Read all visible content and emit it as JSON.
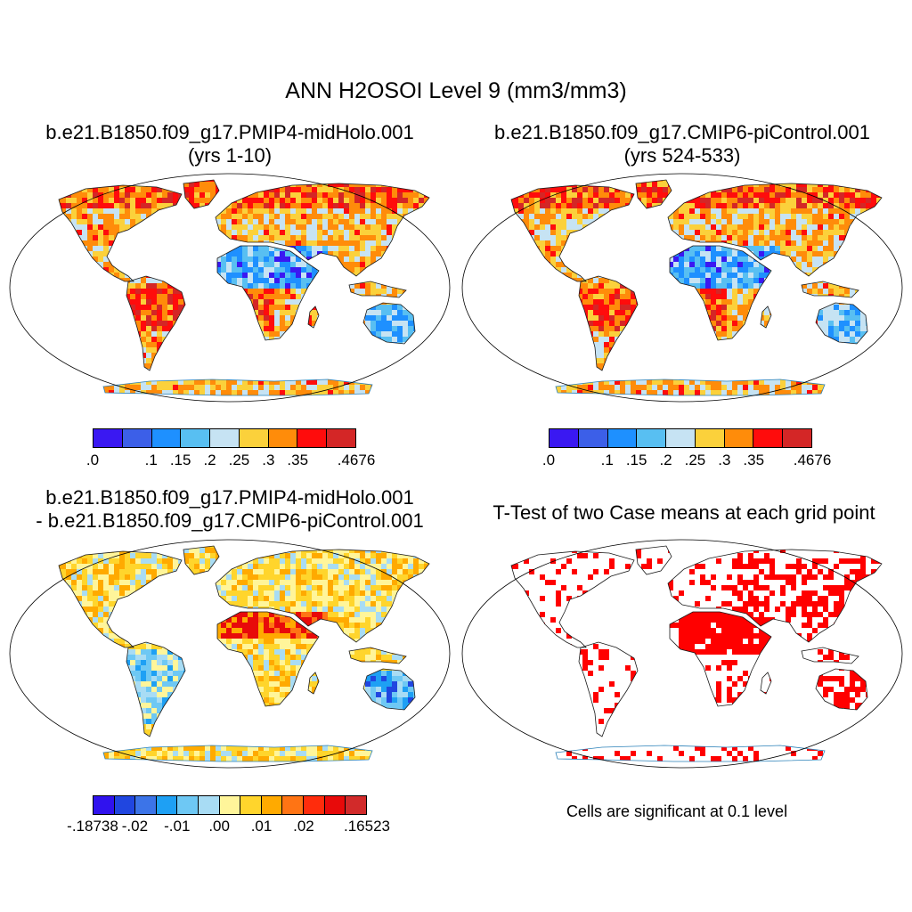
{
  "title": "ANN H2OSOI Level 9 (mm3/mm3)",
  "panels": [
    {
      "line1": "b.e21.B1850.f09_g17.PMIP4-midHolo.001",
      "line2": "(yrs 1-10)"
    },
    {
      "line1": "b.e21.B1850.f09_g17.CMIP6-piControl.001",
      "line2": "(yrs 524-533)"
    },
    {
      "line1": "b.e21.B1850.f09_g17.PMIP4-midHolo.001",
      "line2": "- b.e21.B1850.f09_g17.CMIP6-piControl.001"
    },
    {
      "line1": "T-Test of two Case means at each grid point"
    }
  ],
  "significance_note": "Cells are significant at 0.1 level",
  "colorbars": {
    "absolute": {
      "colors": [
        "#3a18f2",
        "#3c5fe8",
        "#1e90ff",
        "#58bff2",
        "#c6e3f3",
        "#fbd13b",
        "#ff8c0a",
        "#ff0c0c",
        "#d42626"
      ],
      "labels": [
        ".0",
        ".1",
        ".15",
        ".2",
        ".25",
        ".3",
        ".35",
        ".4676"
      ],
      "label_index": [
        0,
        2,
        3,
        4,
        5,
        6,
        7,
        9
      ]
    },
    "difference": {
      "colors": [
        "#3012ee",
        "#2046e0",
        "#3c74e8",
        "#1ea0f4",
        "#6ec8f4",
        "#a8dcf4",
        "#fff59a",
        "#ffd52c",
        "#ffaa00",
        "#ff7414",
        "#ff2c0c",
        "#e80a0a",
        "#d22a2a"
      ],
      "labels": [
        "-.18738",
        "-.02",
        "-.01",
        ".00",
        ".01",
        ".02",
        ".16523"
      ],
      "label_index": [
        0,
        2,
        4,
        6,
        8,
        10,
        13
      ]
    }
  },
  "maps": [
    {
      "field": "absolute",
      "palette": [
        "#3a18f2",
        "#1e90ff",
        "#58bff2",
        "#c6e3f3",
        "#fbd13b",
        "#ff8c0a",
        "#ff0c0c",
        "#d42626"
      ]
    },
    {
      "field": "absolute",
      "palette": [
        "#3a18f2",
        "#1e90ff",
        "#58bff2",
        "#c6e3f3",
        "#fbd13b",
        "#ff8c0a",
        "#ff0c0c",
        "#d42626"
      ]
    },
    {
      "field": "difference",
      "palette": [
        "#2046e0",
        "#1ea0f4",
        "#6ec8f4",
        "#a8dcf4",
        "#fff59a",
        "#ffd52c",
        "#ffaa00",
        "#ff7414",
        "#e80a0a"
      ]
    },
    {
      "field": "significance",
      "palette": [
        "#ff0000"
      ]
    }
  ],
  "colors": {
    "land_outline": "#1a1a1a",
    "coastline_antarctica": "#2a80b8",
    "significant": "#ff0000"
  }
}
